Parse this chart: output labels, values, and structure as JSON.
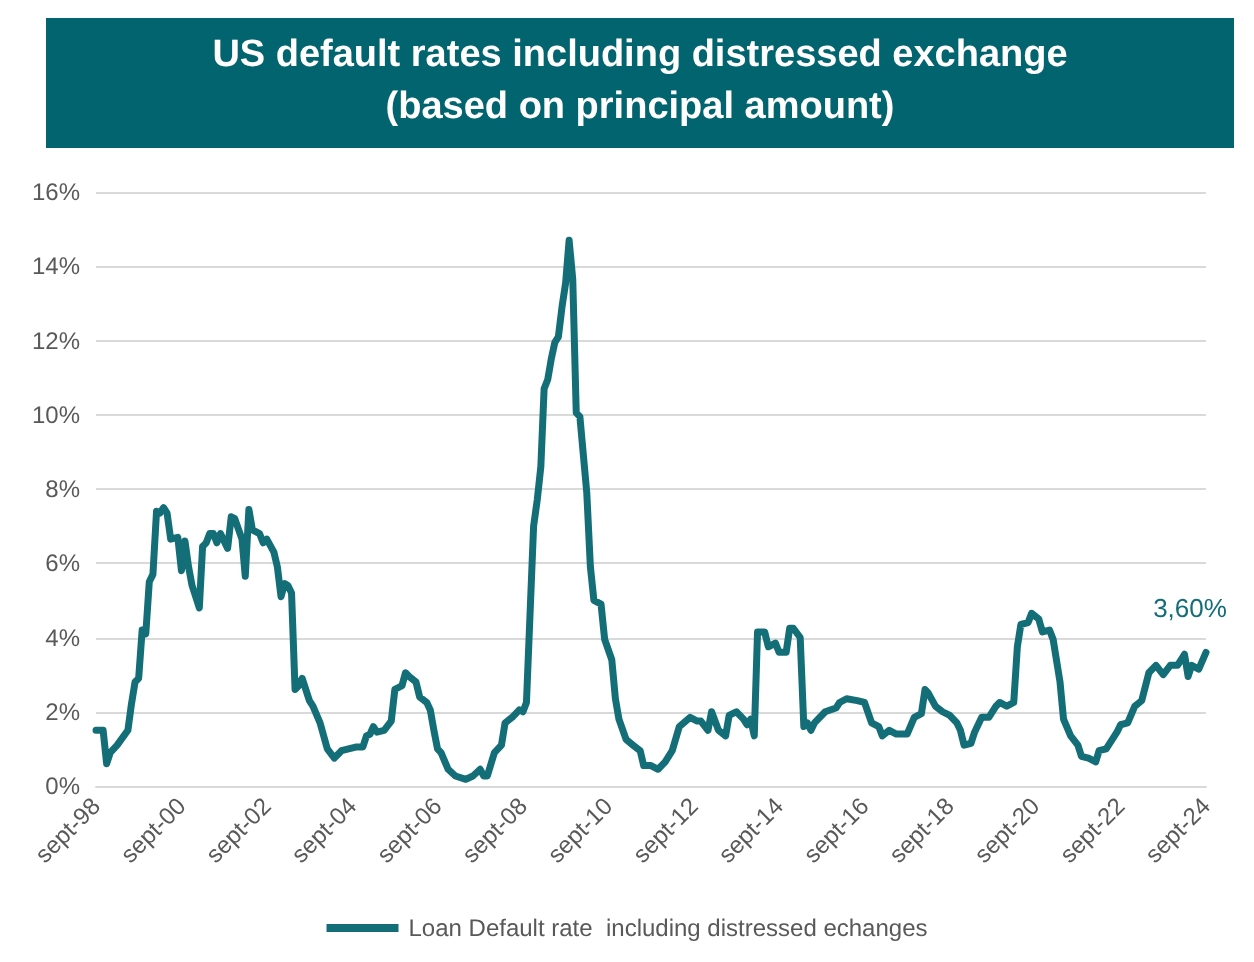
{
  "chart_data": {
    "type": "line",
    "title": "US default rates including distressed exchange",
    "subtitle": "(based on principal amount)",
    "x": [
      "1998-09",
      "1998-11",
      "1998-12",
      "1999-01",
      "1999-03",
      "1999-06",
      "1999-07",
      "1999-08",
      "1999-09",
      "1999-10",
      "1999-11",
      "1999-12",
      "2000-01",
      "2000-02",
      "2000-03",
      "2000-04",
      "2000-05",
      "2000-06",
      "2000-08",
      "2000-09",
      "2000-10",
      "2000-11",
      "2000-12",
      "2001-02",
      "2001-03",
      "2001-04",
      "2001-05",
      "2001-06",
      "2001-07",
      "2001-08",
      "2001-10",
      "2001-11",
      "2001-12",
      "2002-02",
      "2002-03",
      "2002-04",
      "2002-05",
      "2002-07",
      "2002-08",
      "2002-09",
      "2002-11",
      "2002-12",
      "2003-01",
      "2003-02",
      "2003-03",
      "2003-04",
      "2003-05",
      "2003-06",
      "2003-07",
      "2003-09",
      "2003-10",
      "2003-12",
      "2004-02",
      "2004-04",
      "2004-06",
      "2004-08",
      "2004-10",
      "2004-12",
      "2005-01",
      "2005-02",
      "2005-03",
      "2005-04",
      "2005-06",
      "2005-08",
      "2005-09",
      "2005-11",
      "2005-12",
      "2006-01",
      "2006-03",
      "2006-04",
      "2006-06",
      "2006-07",
      "2006-08",
      "2006-09",
      "2006-10",
      "2006-12",
      "2007-02",
      "2007-05",
      "2007-07",
      "2007-09",
      "2007-10",
      "2007-11",
      "2008-01",
      "2008-03",
      "2008-04",
      "2008-06",
      "2008-08",
      "2008-09",
      "2008-10",
      "2008-12",
      "2009-01",
      "2009-02",
      "2009-03",
      "2009-04",
      "2009-05",
      "2009-06",
      "2009-07",
      "2009-08",
      "2009-09",
      "2009-10",
      "2009-11",
      "2009-12",
      "2010-01",
      "2010-03",
      "2010-04",
      "2010-05",
      "2010-07",
      "2010-08",
      "2010-10",
      "2010-11",
      "2010-12",
      "2011-02",
      "2011-04",
      "2011-06",
      "2011-07",
      "2011-09",
      "2011-11",
      "2012-01",
      "2012-03",
      "2012-05",
      "2012-08",
      "2012-10",
      "2012-11",
      "2013-01",
      "2013-02",
      "2013-04",
      "2013-06",
      "2013-07",
      "2013-09",
      "2013-11",
      "2013-12",
      "2014-01",
      "2014-02",
      "2014-03",
      "2014-05",
      "2014-06",
      "2014-08",
      "2014-09",
      "2014-11",
      "2014-12",
      "2015-01",
      "2015-03",
      "2015-04",
      "2015-05",
      "2015-06",
      "2015-07",
      "2015-10",
      "2016-01",
      "2016-02",
      "2016-04",
      "2016-07",
      "2016-09",
      "2016-11",
      "2017-01",
      "2017-02",
      "2017-04",
      "2017-06",
      "2017-09",
      "2017-11",
      "2018-01",
      "2018-02",
      "2018-03",
      "2018-05",
      "2018-07",
      "2018-09",
      "2018-11",
      "2018-12",
      "2019-01",
      "2019-03",
      "2019-04",
      "2019-06",
      "2019-08",
      "2019-10",
      "2019-11",
      "2020-01",
      "2020-03",
      "2020-04",
      "2020-05",
      "2020-07",
      "2020-08",
      "2020-10",
      "2020-11",
      "2021-01",
      "2021-02",
      "2021-04",
      "2021-05",
      "2021-07",
      "2021-09",
      "2021-10",
      "2021-12",
      "2022-02",
      "2022-03",
      "2022-05",
      "2022-08",
      "2022-09",
      "2022-11",
      "2023-01",
      "2023-03",
      "2023-05",
      "2023-07",
      "2023-09",
      "2023-11",
      "2024-01",
      "2024-02",
      "2024-03",
      "2024-04",
      "2024-05",
      "2024-07",
      "2024-09"
    ],
    "series": [
      {
        "name": "Loan Default rate  including distressed echanges",
        "color": "#136e78",
        "values": [
          1.5,
          1.5,
          0.6,
          0.9,
          1.1,
          1.5,
          2.2,
          2.8,
          2.9,
          4.2,
          4.1,
          5.5,
          5.7,
          7.4,
          7.35,
          7.5,
          7.35,
          6.65,
          6.7,
          5.8,
          6.6,
          5.9,
          5.4,
          4.8,
          6.45,
          6.55,
          6.8,
          6.8,
          6.55,
          6.8,
          6.4,
          7.25,
          7.2,
          6.65,
          5.65,
          7.45,
          6.9,
          6.8,
          6.55,
          6.65,
          6.3,
          5.9,
          5.1,
          5.45,
          5.4,
          5.2,
          2.6,
          2.7,
          2.9,
          2.3,
          2.15,
          1.7,
          1.0,
          0.75,
          0.95,
          1.0,
          1.05,
          1.05,
          1.35,
          1.4,
          1.6,
          1.45,
          1.5,
          1.75,
          2.6,
          2.7,
          3.05,
          2.95,
          2.8,
          2.4,
          2.25,
          2.05,
          1.5,
          1.0,
          0.9,
          0.45,
          0.27,
          0.18,
          0.27,
          0.45,
          0.27,
          0.27,
          0.9,
          1.1,
          1.7,
          1.85,
          2.05,
          2.0,
          2.25,
          7.0,
          7.7,
          8.6,
          10.7,
          10.95,
          11.5,
          11.95,
          12.1,
          12.9,
          13.55,
          14.7,
          13.65,
          10.05,
          9.95,
          7.9,
          5.9,
          5.0,
          4.9,
          3.95,
          3.4,
          2.35,
          1.8,
          1.25,
          1.1,
          0.95,
          0.55,
          0.55,
          0.45,
          0.65,
          0.95,
          1.6,
          1.85,
          1.75,
          1.75,
          1.5,
          2.0,
          1.5,
          1.35,
          1.9,
          2.0,
          1.8,
          1.65,
          1.8,
          1.35,
          4.15,
          4.15,
          3.75,
          3.85,
          3.6,
          3.6,
          4.25,
          4.25,
          4.0,
          1.6,
          1.7,
          1.5,
          1.7,
          2.0,
          2.1,
          2.25,
          2.35,
          2.3,
          2.25,
          1.7,
          1.6,
          1.35,
          1.5,
          1.4,
          1.4,
          1.85,
          1.95,
          2.6,
          2.5,
          2.15,
          2.0,
          1.9,
          1.7,
          1.5,
          1.1,
          1.15,
          1.45,
          1.85,
          1.85,
          2.15,
          2.25,
          2.15,
          2.25,
          3.75,
          4.35,
          4.4,
          4.65,
          4.5,
          4.15,
          4.2,
          3.95,
          2.8,
          1.8,
          1.35,
          1.1,
          0.8,
          0.75,
          0.65,
          0.95,
          1.0,
          1.45,
          1.65,
          1.7,
          2.15,
          2.3,
          3.05,
          3.25,
          3.0,
          3.25,
          3.25,
          3.4,
          3.55,
          2.95,
          3.25,
          3.15,
          3.6
        ]
      }
    ],
    "xlim": [
      "1998-09",
      "2024-09"
    ],
    "xticks": [
      {
        "value": "1998-09",
        "label": "sept-98"
      },
      {
        "value": "2000-09",
        "label": "sept-00"
      },
      {
        "value": "2002-09",
        "label": "sept-02"
      },
      {
        "value": "2004-09",
        "label": "sept-04"
      },
      {
        "value": "2006-09",
        "label": "sept-06"
      },
      {
        "value": "2008-09",
        "label": "sept-08"
      },
      {
        "value": "2010-09",
        "label": "sept-10"
      },
      {
        "value": "2012-09",
        "label": "sept-12"
      },
      {
        "value": "2014-09",
        "label": "sept-14"
      },
      {
        "value": "2016-09",
        "label": "sept-16"
      },
      {
        "value": "2018-09",
        "label": "sept-18"
      },
      {
        "value": "2020-09",
        "label": "sept-20"
      },
      {
        "value": "2022-09",
        "label": "sept-22"
      },
      {
        "value": "2024-09",
        "label": "sept-24"
      }
    ],
    "ylim": [
      0,
      16
    ],
    "yticks": [
      {
        "value": 0,
        "label": "0%"
      },
      {
        "value": 2,
        "label": "2%"
      },
      {
        "value": 4,
        "label": "4%"
      },
      {
        "value": 6,
        "label": "6%"
      },
      {
        "value": 8,
        "label": "8%"
      },
      {
        "value": 10,
        "label": "10%"
      },
      {
        "value": 12,
        "label": "12%"
      },
      {
        "value": 14,
        "label": "14%"
      },
      {
        "value": 16,
        "label": "16%"
      }
    ],
    "annotations": [
      {
        "text": "3,60%",
        "x": "2024-09",
        "y": 3.6
      }
    ],
    "grid": "y",
    "legend": "bottom",
    "marker": "none",
    "line_style": "solid"
  }
}
